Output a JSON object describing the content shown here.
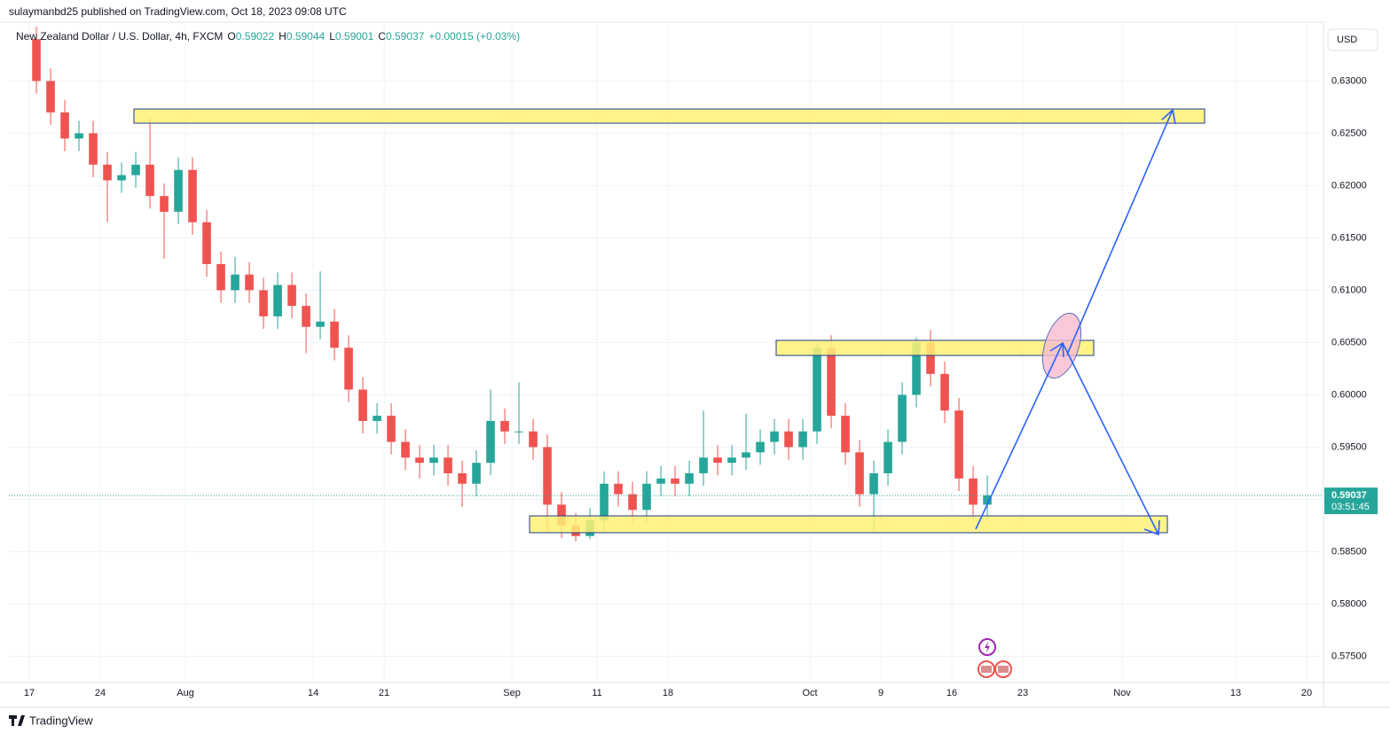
{
  "header": {
    "published": "sulaymanbd25 published on TradingView.com, Oct 18, 2023 09:08 UTC"
  },
  "chart_data": {
    "type": "candlestick",
    "title": "New Zealand Dollar / U.S. Dollar, 4h, FXCM",
    "legend_ohlc": {
      "open_label": "O",
      "open": 0.59022,
      "high_label": "H",
      "high": 0.59044,
      "low_label": "L",
      "low": 0.59001,
      "close_label": "C",
      "close": 0.59037,
      "change": "+0.00015 (+0.03%)"
    },
    "currency": "USD",
    "up_color": "#26a69a",
    "down_color": "#ef5350",
    "grid": true,
    "x": [
      0.5,
      1.5,
      2.5,
      3.5,
      4.5,
      5.5,
      6.5,
      7.5,
      8.5,
      9.5,
      10.5,
      11.5,
      12.5,
      13.5,
      14.5,
      15.5,
      16.5,
      17.5,
      18.5,
      19.5,
      20.5,
      21.5,
      22.5,
      23.5,
      24.5,
      25.5,
      26.5,
      27.5,
      28.5,
      29.5,
      30.5,
      31.5,
      32.5,
      33.5,
      34.5,
      35.5,
      36.5,
      37.5,
      38.5,
      39.5,
      40.5,
      41.5,
      42.5,
      43.5,
      44.5,
      45.5,
      46.5,
      47.5,
      48.5,
      49.5,
      50.5,
      51.5,
      52.5,
      53.5,
      54.5,
      55.5,
      56.5,
      57.5,
      58.5,
      59.5,
      60.5,
      61.5,
      62.5,
      63.5,
      64.5,
      65.5,
      66.5,
      67.5
    ],
    "open": [
      0.634,
      0.63,
      0.627,
      0.6245,
      0.625,
      0.622,
      0.6205,
      0.621,
      0.622,
      0.619,
      0.6175,
      0.6215,
      0.6165,
      0.6125,
      0.61,
      0.6115,
      0.61,
      0.6075,
      0.6105,
      0.6085,
      0.6065,
      0.607,
      0.6045,
      0.6005,
      0.5975,
      0.598,
      0.5955,
      0.594,
      0.5935,
      0.594,
      0.5925,
      0.5915,
      0.5935,
      0.5975,
      0.5965,
      0.5965,
      0.595,
      0.5895,
      0.5875,
      0.5865,
      0.588,
      0.5915,
      0.5905,
      0.589,
      0.5915,
      0.592,
      0.5915,
      0.5925,
      0.594,
      0.5935,
      0.594,
      0.5945,
      0.5955,
      0.5965,
      0.595,
      0.5965,
      0.6045,
      0.598,
      0.5945,
      0.5905,
      0.5925,
      0.5955,
      0.6,
      0.605,
      0.602,
      0.5985,
      0.592,
      0.5895
    ],
    "high": [
      0.6352,
      0.6312,
      0.6282,
      0.6262,
      0.6262,
      0.6232,
      0.6222,
      0.6232,
      0.6265,
      0.6202,
      0.6227,
      0.6227,
      0.6177,
      0.6137,
      0.6132,
      0.6127,
      0.6112,
      0.6117,
      0.6117,
      0.6097,
      0.6118,
      0.6082,
      0.6057,
      0.6017,
      0.5992,
      0.5992,
      0.5967,
      0.5952,
      0.5952,
      0.5952,
      0.5937,
      0.5947,
      0.6005,
      0.5987,
      0.6012,
      0.5977,
      0.5962,
      0.5907,
      0.5887,
      0.5892,
      0.5927,
      0.5927,
      0.5917,
      0.5927,
      0.5932,
      0.5932,
      0.5937,
      0.5985,
      0.5952,
      0.5952,
      0.5982,
      0.5967,
      0.5977,
      0.5977,
      0.5977,
      0.605,
      0.6057,
      0.5992,
      0.5957,
      0.5937,
      0.5967,
      0.6012,
      0.6055,
      0.6062,
      0.6032,
      0.5997,
      0.5932,
      0.5923
    ],
    "low": [
      0.6288,
      0.6258,
      0.6233,
      0.6233,
      0.6208,
      0.6165,
      0.6193,
      0.6198,
      0.6178,
      0.613,
      0.6163,
      0.6153,
      0.6113,
      0.6088,
      0.6088,
      0.6088,
      0.6063,
      0.6063,
      0.6073,
      0.604,
      0.6053,
      0.6033,
      0.5993,
      0.5963,
      0.5963,
      0.5943,
      0.5928,
      0.592,
      0.5923,
      0.5913,
      0.5893,
      0.5903,
      0.5923,
      0.5953,
      0.5953,
      0.5938,
      0.587,
      0.5863,
      0.586,
      0.5862,
      0.5868,
      0.5893,
      0.5878,
      0.5878,
      0.5903,
      0.5903,
      0.5903,
      0.5913,
      0.5923,
      0.5923,
      0.5928,
      0.5933,
      0.5943,
      0.5938,
      0.5938,
      0.5953,
      0.5968,
      0.5933,
      0.5893,
      0.587,
      0.5913,
      0.5943,
      0.5988,
      0.6008,
      0.5973,
      0.5908,
      0.588,
      0.588
    ],
    "close": [
      0.63,
      0.627,
      0.6245,
      0.625,
      0.622,
      0.6205,
      0.621,
      0.622,
      0.619,
      0.6175,
      0.6215,
      0.6165,
      0.6125,
      0.61,
      0.6115,
      0.61,
      0.6075,
      0.6105,
      0.6085,
      0.6065,
      0.607,
      0.6045,
      0.6005,
      0.5975,
      0.598,
      0.5955,
      0.594,
      0.5935,
      0.594,
      0.5925,
      0.5915,
      0.5935,
      0.5975,
      0.5965,
      0.5965,
      0.595,
      0.5895,
      0.5875,
      0.5865,
      0.588,
      0.5915,
      0.5905,
      0.589,
      0.5915,
      0.592,
      0.5915,
      0.5925,
      0.594,
      0.5935,
      0.594,
      0.5945,
      0.5955,
      0.5965,
      0.595,
      0.5965,
      0.6045,
      0.598,
      0.5945,
      0.5905,
      0.5925,
      0.5955,
      0.6,
      0.605,
      0.602,
      0.5985,
      0.592,
      0.5895,
      0.5904
    ],
    "xlim": [
      -1.44,
      91.06
    ],
    "xticks": [
      {
        "value": 0,
        "label": "17"
      },
      {
        "value": 5,
        "label": "24"
      },
      {
        "value": 11,
        "label": "Aug"
      },
      {
        "value": 20,
        "label": "14"
      },
      {
        "value": 25,
        "label": "21"
      },
      {
        "value": 34,
        "label": "Sep"
      },
      {
        "value": 40,
        "label": "11"
      },
      {
        "value": 45,
        "label": "18"
      },
      {
        "value": 55,
        "label": "Oct"
      },
      {
        "value": 60,
        "label": "9"
      },
      {
        "value": 65,
        "label": "16"
      },
      {
        "value": 70,
        "label": "23"
      },
      {
        "value": 77,
        "label": "Nov"
      },
      {
        "value": 85,
        "label": "13"
      },
      {
        "value": 90,
        "label": "20"
      }
    ],
    "ylim": [
      0.5725,
      0.6352
    ],
    "yticks": [
      {
        "value": 0.575,
        "label": "0.57500"
      },
      {
        "value": 0.58,
        "label": "0.58000"
      },
      {
        "value": 0.585,
        "label": "0.58500"
      },
      {
        "value": 0.59,
        "label": "0.59000"
      },
      {
        "value": 0.595,
        "label": "0.59500"
      },
      {
        "value": 0.6,
        "label": "0.60000"
      },
      {
        "value": 0.605,
        "label": "0.60500"
      },
      {
        "value": 0.61,
        "label": "0.61000"
      },
      {
        "value": 0.615,
        "label": "0.61500"
      },
      {
        "value": 0.62,
        "label": "0.62000"
      },
      {
        "value": 0.625,
        "label": "0.62500"
      },
      {
        "value": 0.63,
        "label": "0.63000"
      }
    ],
    "last_price": {
      "value": 0.59037,
      "label": "0.59037",
      "countdown": "03:51:45"
    }
  },
  "footer": {
    "brand": "TradingView"
  }
}
